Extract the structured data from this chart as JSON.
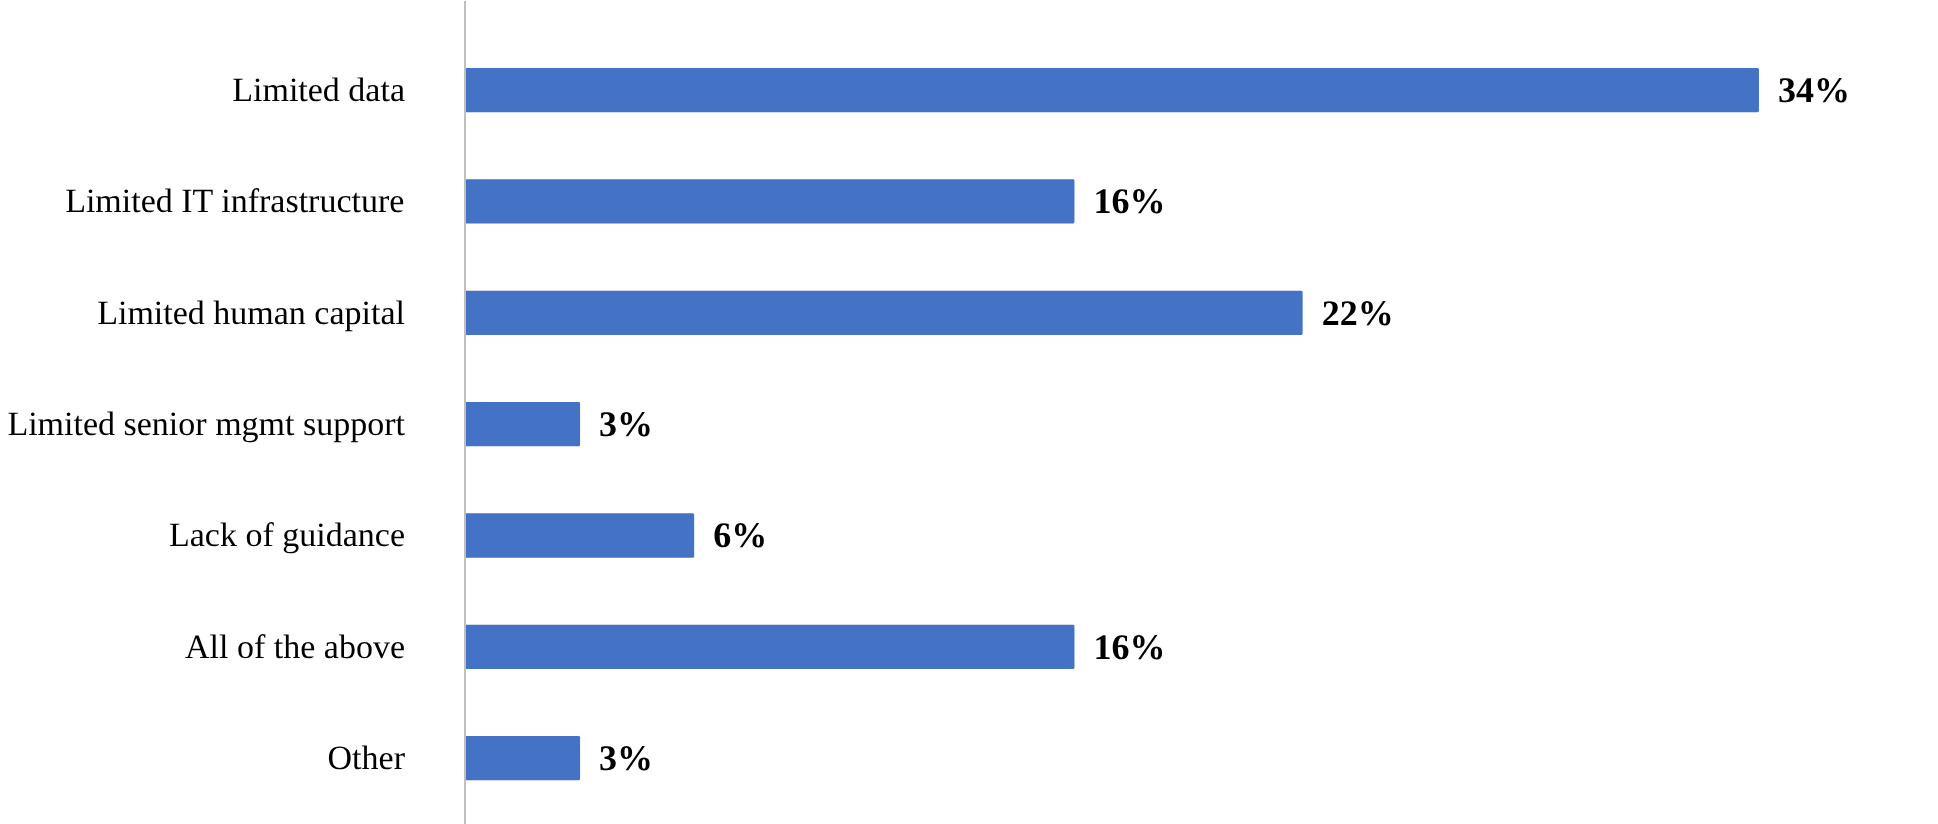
{
  "chart_data": {
    "type": "bar",
    "orientation": "horizontal",
    "categories": [
      "Limited data",
      "Limited IT infrastructure",
      "Limited human capital",
      "Limited senior mgmt support",
      "Lack of guidance",
      "All of the above",
      "Other"
    ],
    "values": [
      34,
      16,
      22,
      3,
      6,
      16,
      3
    ],
    "value_labels": [
      "34%",
      "16%",
      "22%",
      "3%",
      "6%",
      "16%",
      "3%"
    ],
    "color": "#4472c4"
  }
}
